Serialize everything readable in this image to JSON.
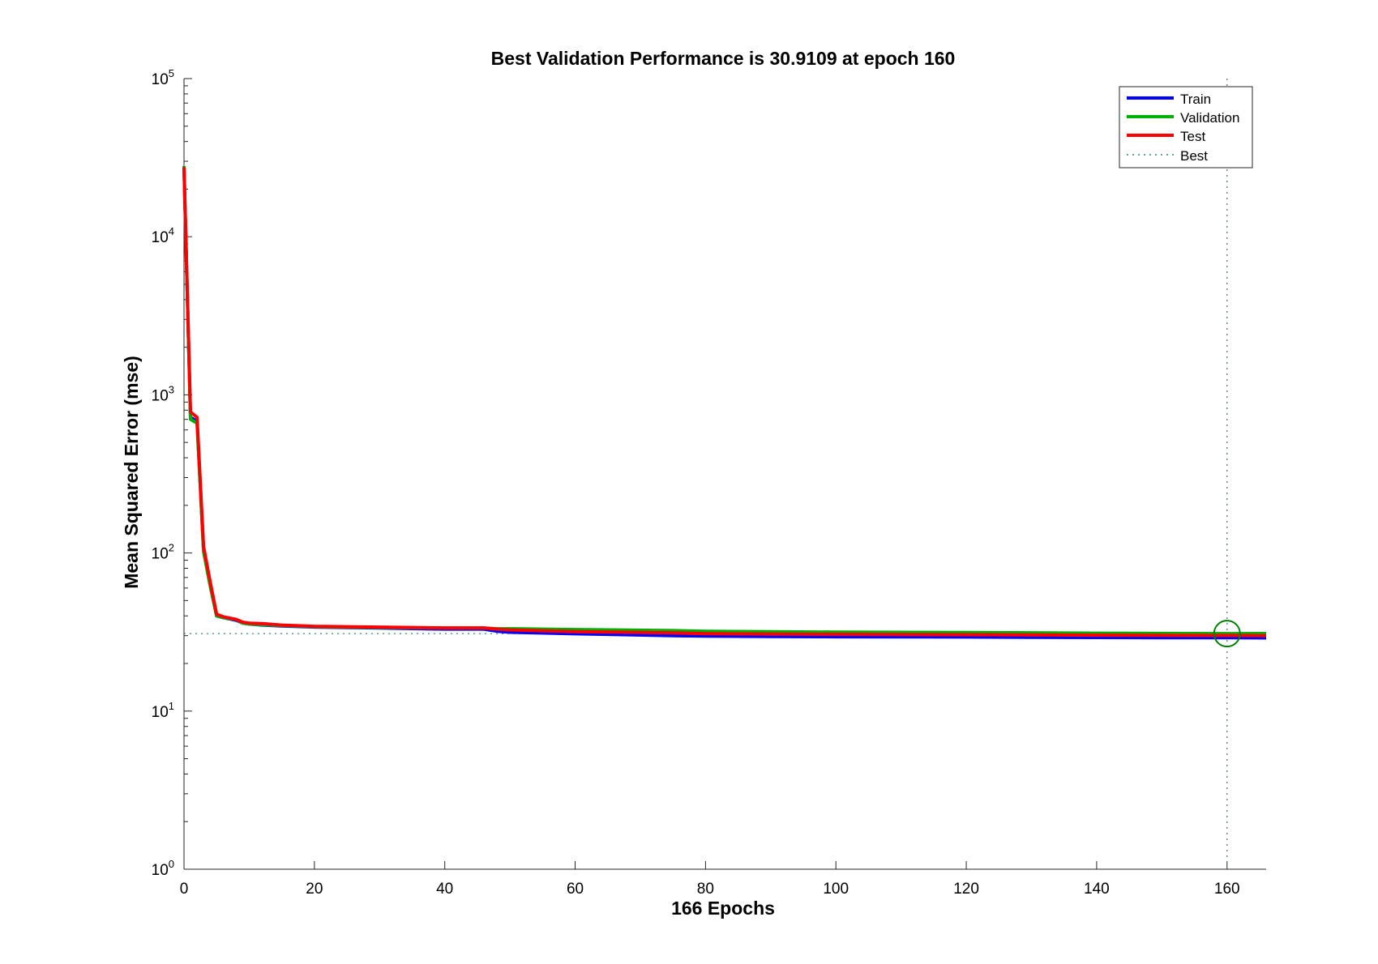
{
  "chart_data": {
    "type": "line",
    "title": "Best Validation Performance is 30.9109 at epoch 160",
    "xlabel": "166 Epochs",
    "ylabel": "Mean Squared Error  (mse)",
    "xlim": [
      0,
      166
    ],
    "ylim": [
      1,
      100000
    ],
    "yscale": "log",
    "xticks": [
      0,
      20,
      40,
      60,
      80,
      100,
      120,
      140,
      160
    ],
    "xtick_labels": [
      "0",
      "20",
      "40",
      "60",
      "80",
      "100",
      "120",
      "140",
      "160"
    ],
    "yticks": [
      1,
      10,
      100,
      1000,
      10000,
      100000
    ],
    "ytick_base": "10",
    "ytick_exponents": [
      "0",
      "1",
      "2",
      "3",
      "4",
      "5"
    ],
    "grid": false,
    "legend_position": "top-right",
    "best": {
      "epoch": 160,
      "value": 30.9109,
      "label": "Best"
    },
    "series": [
      {
        "name": "Train",
        "color": "#0000ff",
        "x": [
          0,
          1,
          2,
          3,
          4,
          5,
          6,
          8,
          9,
          10,
          12,
          15,
          20,
          30,
          40,
          46,
          48,
          50,
          60,
          75,
          80,
          90,
          100,
          120,
          130,
          140,
          150,
          160,
          166
        ],
        "y": [
          27000,
          720,
          680,
          105,
          64,
          40,
          39,
          37.5,
          36,
          35.5,
          35,
          34.5,
          34,
          33.5,
          33,
          33,
          32,
          31.5,
          30.8,
          30,
          29.8,
          29.6,
          29.5,
          29.4,
          29.3,
          29.2,
          29.1,
          29.1,
          29.0
        ]
      },
      {
        "name": "Validation",
        "color": "#00b000",
        "x": [
          0,
          1,
          2,
          3,
          4,
          5,
          6,
          8,
          9,
          10,
          12,
          15,
          20,
          30,
          40,
          46,
          48,
          50,
          60,
          75,
          80,
          90,
          100,
          120,
          130,
          140,
          150,
          160,
          166
        ],
        "y": [
          28000,
          700,
          660,
          102,
          62,
          40,
          39,
          38,
          36,
          35.5,
          35.2,
          34.8,
          34.2,
          33.8,
          33.5,
          33.5,
          33.2,
          33.2,
          32.8,
          32.3,
          32.0,
          31.8,
          31.6,
          31.4,
          31.3,
          31.1,
          31.0,
          30.9109,
          30.95
        ]
      },
      {
        "name": "Test",
        "color": "#ff0000",
        "x": [
          0,
          1,
          2,
          3,
          4,
          5,
          6,
          8,
          9,
          10,
          12,
          15,
          20,
          30,
          40,
          46,
          48,
          50,
          60,
          75,
          80,
          90,
          100,
          120,
          130,
          140,
          150,
          160,
          166
        ],
        "y": [
          27500,
          780,
          720,
          110,
          66,
          41,
          39.5,
          38,
          36.5,
          36,
          35.8,
          35,
          34.4,
          34,
          33.6,
          33.6,
          33,
          32.6,
          31.8,
          31.2,
          30.9,
          30.7,
          30.6,
          30.4,
          30.3,
          30.2,
          30.1,
          30.05,
          30.0
        ]
      }
    ]
  },
  "legend": {
    "items": [
      {
        "label": "Train",
        "color": "#0000ff",
        "style": "solid"
      },
      {
        "label": "Validation",
        "color": "#00b000",
        "style": "solid"
      },
      {
        "label": "Test",
        "color": "#ff0000",
        "style": "solid"
      },
      {
        "label": "Best",
        "color": "#2a8a7a",
        "style": "dotted"
      }
    ]
  },
  "best_marker_color": "#008000"
}
